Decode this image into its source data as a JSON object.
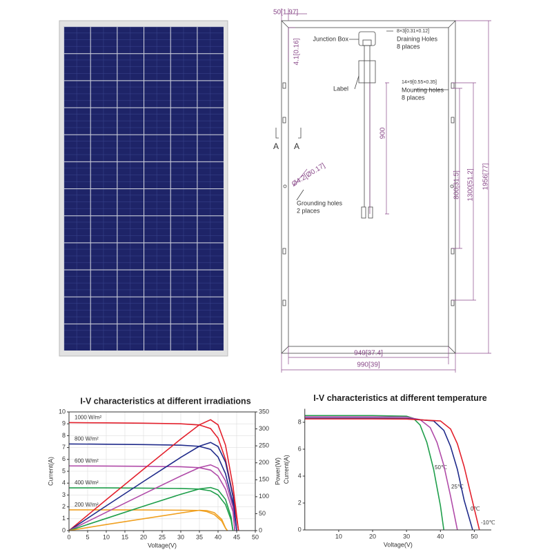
{
  "drawing": {
    "edge_offset": "50[1.97]",
    "hole_offset": "4.1[0.16]",
    "junction_box": "Junction Box",
    "draining_size": "8×3[0.31×0.12]",
    "draining_holes": "Draining Holes",
    "draining_count": "8 places",
    "label": "Label",
    "mounting_size": "14×9[0.55×0.35]",
    "mounting_holes": "Mounting holes",
    "mounting_count": "8 places",
    "cable_length": "900",
    "section_left": "A",
    "section_right": "A",
    "grounding_size": "Ø4.2[Ø0.17]",
    "grounding_holes": "Grounding holes",
    "grounding_count": "2 places",
    "mount_spacing_1": "800[31.5]",
    "mount_spacing_2": "1300[51.2]",
    "length": "1956[77]",
    "inner_width": "949[37.4]",
    "width": "990[39]"
  },
  "chart_data": [
    {
      "type": "line",
      "title": "I-V characteristics at different irradiations",
      "xlabel": "Voltage(V)",
      "ylabel": "Current(A)",
      "y2label": "Power(W)",
      "xlim": [
        0,
        50
      ],
      "xticks": [
        0,
        5,
        10,
        15,
        20,
        25,
        30,
        35,
        40,
        45,
        50
      ],
      "ylim": [
        0,
        10
      ],
      "yticks": [
        0,
        1,
        2,
        3,
        4,
        5,
        6,
        7,
        8,
        9,
        10
      ],
      "y2lim": [
        0,
        350
      ],
      "y2ticks": [
        0,
        50,
        100,
        150,
        200,
        250,
        300,
        350
      ],
      "grid": true,
      "series": [
        {
          "name": "1000 W/m²",
          "color": "#e3202c",
          "x": [
            0,
            10,
            20,
            30,
            35,
            38,
            40,
            42,
            44,
            45.5
          ],
          "values": [
            9.1,
            9.08,
            9.05,
            9.0,
            8.9,
            8.6,
            7.8,
            6.0,
            3.0,
            0
          ]
        },
        {
          "name": "800 W/m²",
          "color": "#1f2a8a",
          "x": [
            0,
            10,
            20,
            30,
            35,
            38,
            40,
            42,
            44,
            45
          ],
          "values": [
            7.3,
            7.28,
            7.25,
            7.2,
            7.1,
            6.85,
            6.2,
            4.8,
            2.3,
            0
          ]
        },
        {
          "name": "600 W/m²",
          "color": "#b04aa8",
          "x": [
            0,
            10,
            20,
            30,
            35,
            38,
            40,
            42,
            44,
            44.5
          ],
          "values": [
            5.45,
            5.44,
            5.42,
            5.38,
            5.3,
            5.1,
            4.6,
            3.5,
            1.6,
            0
          ]
        },
        {
          "name": "400 W/m²",
          "color": "#1e9e4a",
          "x": [
            0,
            10,
            20,
            30,
            35,
            38,
            40,
            42,
            43.5,
            44
          ],
          "values": [
            3.6,
            3.6,
            3.58,
            3.55,
            3.5,
            3.35,
            3.0,
            2.2,
            0.9,
            0
          ]
        },
        {
          "name": "200 W/m²",
          "color": "#f0a020",
          "x": [
            0,
            10,
            20,
            30,
            35,
            37,
            39,
            41,
            42,
            42.5
          ],
          "values": [
            1.75,
            1.75,
            1.74,
            1.72,
            1.7,
            1.6,
            1.35,
            0.8,
            0.2,
            0
          ]
        },
        {
          "axis": "y2",
          "color": "#e3202c",
          "x": [
            0,
            10,
            20,
            30,
            35,
            38,
            40,
            42,
            44,
            45.5
          ],
          "values": [
            0,
            91,
            181,
            270,
            312,
            327,
            312,
            252,
            132,
            0
          ]
        },
        {
          "axis": "y2",
          "color": "#1f2a8a",
          "x": [
            0,
            10,
            20,
            30,
            35,
            38,
            40,
            42,
            44,
            45
          ],
          "values": [
            0,
            73,
            145,
            216,
            249,
            260,
            248,
            202,
            101,
            0
          ]
        },
        {
          "axis": "y2",
          "color": "#b04aa8",
          "x": [
            0,
            10,
            20,
            30,
            35,
            38,
            40,
            42,
            44,
            44.5
          ],
          "values": [
            0,
            54,
            108,
            161,
            186,
            194,
            184,
            147,
            70,
            0
          ]
        },
        {
          "axis": "y2",
          "color": "#1e9e4a",
          "x": [
            0,
            10,
            20,
            30,
            35,
            38,
            40,
            42,
            43.5,
            44
          ],
          "values": [
            0,
            36,
            72,
            107,
            123,
            127,
            120,
            92,
            40,
            0
          ]
        },
        {
          "axis": "y2",
          "color": "#f0a020",
          "x": [
            0,
            10,
            20,
            30,
            35,
            37,
            39,
            41,
            42,
            42.5
          ],
          "values": [
            0,
            18,
            35,
            52,
            60,
            59,
            53,
            33,
            8,
            0
          ]
        }
      ]
    },
    {
      "type": "line",
      "title": "I-V characteristics at different temperature",
      "xlabel": "Voltage(V)",
      "ylabel": "Current(A)",
      "xlim": [
        0,
        55
      ],
      "xticks": [
        10,
        20,
        30,
        40,
        50
      ],
      "ylim": [
        0,
        9
      ],
      "yticks": [
        0,
        2,
        4,
        6,
        8
      ],
      "grid": false,
      "series": [
        {
          "name": "50℃",
          "color": "#1e9e4a",
          "x": [
            0,
            10,
            20,
            30,
            32,
            34,
            36,
            38,
            40,
            41
          ],
          "values": [
            8.5,
            8.5,
            8.5,
            8.45,
            8.3,
            7.8,
            6.5,
            4.5,
            1.8,
            0
          ]
        },
        {
          "name": "25℃",
          "color": "#b04aa8",
          "x": [
            0,
            10,
            20,
            30,
            34,
            37,
            39,
            41,
            43,
            45
          ],
          "values": [
            8.4,
            8.4,
            8.4,
            8.38,
            8.2,
            7.6,
            6.5,
            4.8,
            2.5,
            0
          ]
        },
        {
          "name": "0℃",
          "color": "#1f2a8a",
          "x": [
            0,
            10,
            20,
            30,
            38,
            41,
            43,
            45,
            47,
            49.5
          ],
          "values": [
            8.3,
            8.3,
            8.3,
            8.28,
            8.1,
            7.4,
            6.2,
            4.5,
            2.2,
            0
          ]
        },
        {
          "name": "-10℃",
          "color": "#e3202c",
          "x": [
            0,
            10,
            20,
            30,
            40,
            43,
            45,
            47,
            49,
            51.5
          ],
          "values": [
            8.25,
            8.25,
            8.25,
            8.24,
            8.1,
            7.5,
            6.4,
            4.7,
            2.6,
            0
          ]
        }
      ]
    }
  ]
}
